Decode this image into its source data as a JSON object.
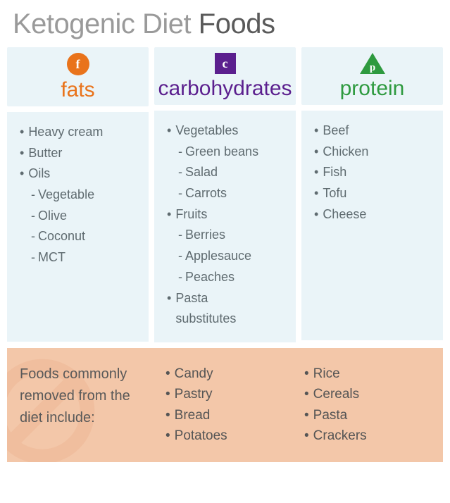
{
  "title": {
    "light": "Ketogenic Diet ",
    "dark": "Foods"
  },
  "colors": {
    "fats": "#e9731b",
    "carbs": "#5b1f8e",
    "protein": "#2e9a3f",
    "panel_bg": "#eaf4f8",
    "text": "#5f6b70",
    "footer_bg": "#f3c7a9",
    "footer_icon": "#f1baa0"
  },
  "columns": [
    {
      "key": "fats",
      "icon_letter": "f",
      "icon_shape": "circle",
      "label": "fats",
      "items": [
        {
          "text": "Heavy cream"
        },
        {
          "text": "Butter"
        },
        {
          "text": "Oils",
          "sub": [
            "Vegetable",
            "Olive",
            "Coconut",
            "MCT"
          ]
        }
      ]
    },
    {
      "key": "carbs",
      "icon_letter": "c",
      "icon_shape": "square",
      "label": "carbohydrates",
      "items": [
        {
          "text": "Vegetables",
          "sub": [
            "Green beans",
            "Salad",
            "Carrots"
          ]
        },
        {
          "text": "Fruits",
          "sub": [
            "Berries",
            "Applesauce",
            "Peaches"
          ]
        },
        {
          "text": "Pasta\nsubstitutes"
        }
      ]
    },
    {
      "key": "protein",
      "icon_letter": "p",
      "icon_shape": "triangle",
      "label": "protein",
      "items": [
        {
          "text": "Beef"
        },
        {
          "text": "Chicken"
        },
        {
          "text": "Fish"
        },
        {
          "text": "Tofu"
        },
        {
          "text": "Cheese"
        }
      ]
    }
  ],
  "footer": {
    "text": "Foods commonly removed from the diet include:",
    "col1": [
      "Candy",
      "Pastry",
      "Bread",
      "Potatoes"
    ],
    "col2": [
      "Rice",
      "Cereals",
      "Pasta",
      "Crackers"
    ]
  }
}
